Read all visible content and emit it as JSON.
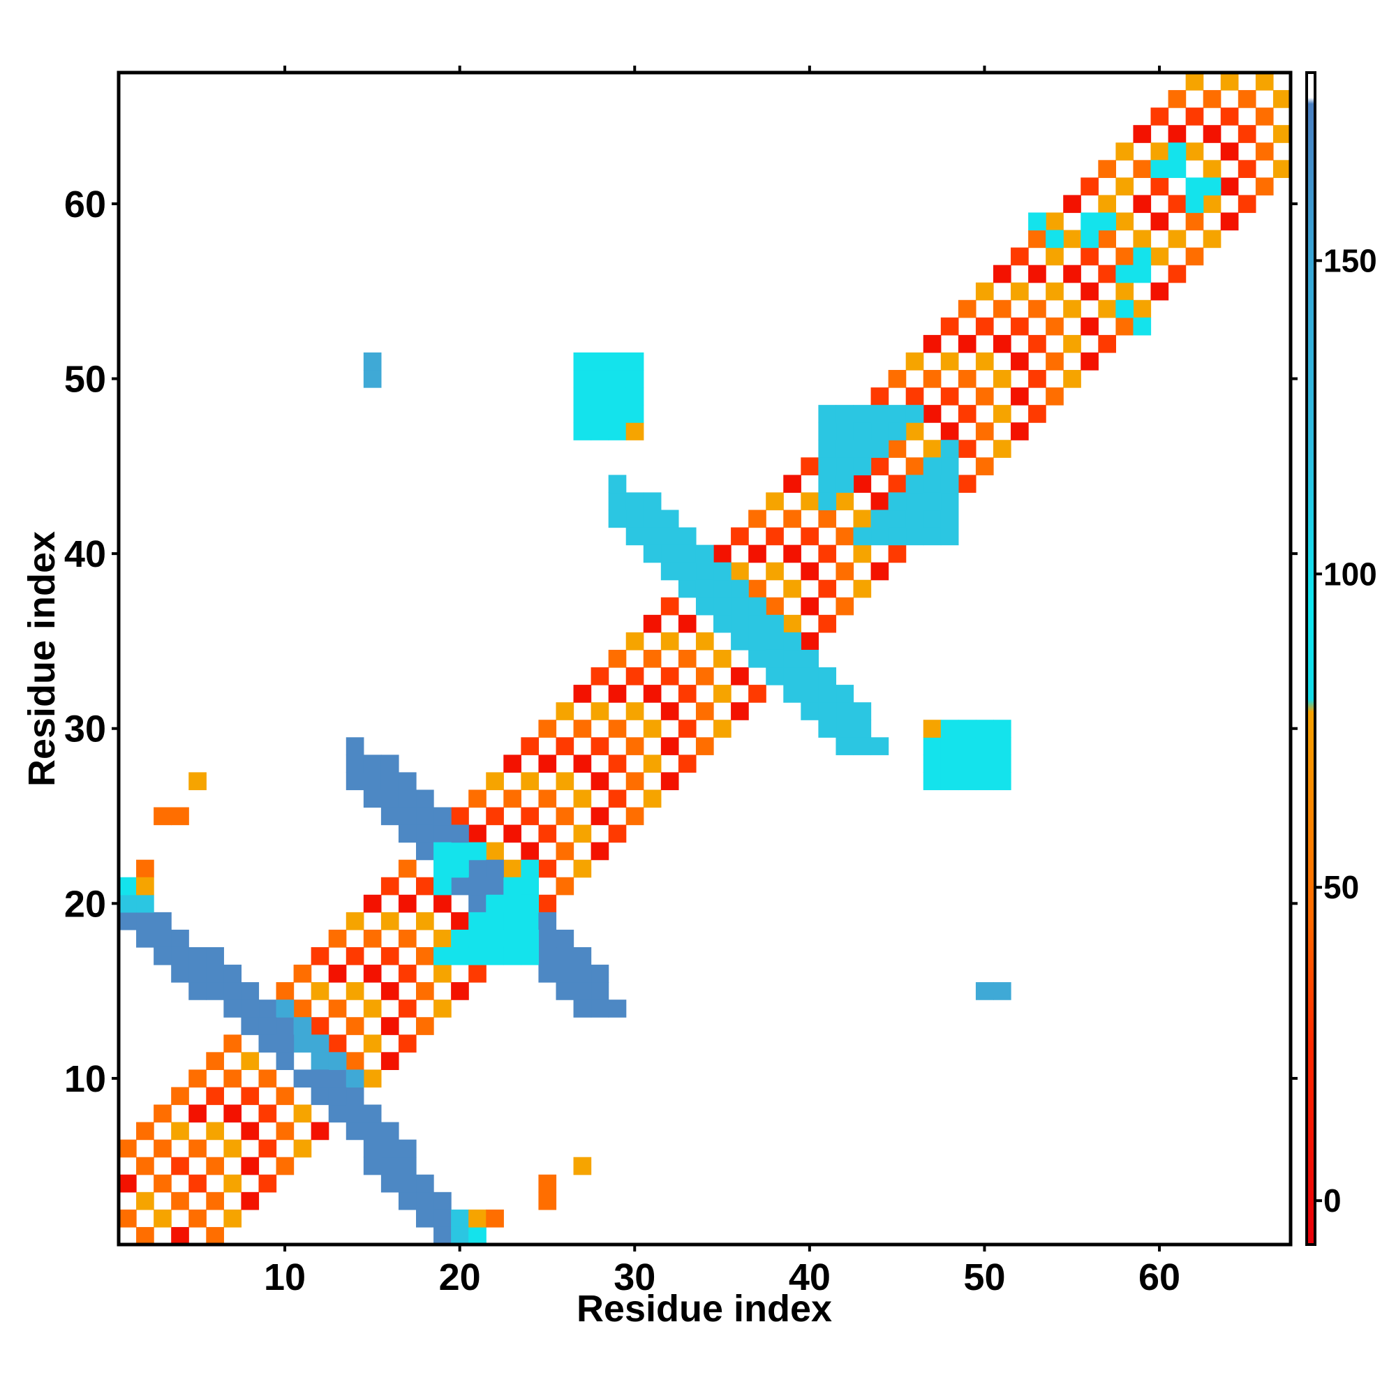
{
  "chart_data": {
    "type": "heatmap",
    "title": "",
    "xlabel": "Residue index",
    "ylabel": "Residue index",
    "xlim": [
      0.5,
      67.5
    ],
    "ylim": [
      0.5,
      67.5
    ],
    "x_ticks": [
      10,
      20,
      30,
      40,
      50,
      60
    ],
    "y_ticks": [
      10,
      20,
      30,
      40,
      50,
      60
    ],
    "colorbar": {
      "ticks": [
        0,
        50,
        100,
        150
      ],
      "range": [
        -7,
        180
      ],
      "stops": [
        {
          "value": -7,
          "color": "#e8000a"
        },
        {
          "value": 25,
          "color": "#ff2a00"
        },
        {
          "value": 45,
          "color": "#ff6a00"
        },
        {
          "value": 78,
          "color": "#f5a000"
        },
        {
          "value": 80,
          "color": "#14dbe8"
        },
        {
          "value": 95,
          "color": "#10e6ef"
        },
        {
          "value": 120,
          "color": "#30bde0"
        },
        {
          "value": 150,
          "color": "#38a6d6"
        },
        {
          "value": 175,
          "color": "#4a7fc1"
        },
        {
          "value": 176,
          "color": "#ffffff"
        },
        {
          "value": 180,
          "color": "#ffffff"
        }
      ]
    },
    "colors": {
      "red": "#f31200",
      "red_orange": "#ff3a00",
      "orange": "#ff6e00",
      "amber": "#f6a400",
      "cyan": "#14e3ec",
      "sky": "#2bc6e2",
      "steel": "#3fa9d6",
      "blue": "#4d88c4"
    },
    "regions": [
      {
        "x": [
          1,
          67
        ],
        "y": [
          1,
          67
        ],
        "band": 6,
        "pattern": "diagonal-alternating",
        "colors": [
          "red",
          "red_orange",
          "orange",
          "amber"
        ]
      },
      {
        "points": [
          [
            2,
            5
          ],
          [
            3,
            4
          ],
          [
            4,
            3
          ],
          [
            5,
            2
          ],
          [
            6,
            1
          ],
          [
            1,
            6
          ],
          [
            2,
            7
          ],
          [
            3,
            8
          ],
          [
            4,
            9
          ],
          [
            5,
            10
          ],
          [
            6,
            11
          ],
          [
            7,
            12
          ],
          [
            8,
            13
          ],
          [
            9,
            14
          ],
          [
            10,
            15
          ],
          [
            11,
            16
          ]
        ],
        "color": "orange"
      },
      {
        "x": [
          1,
          20
        ],
        "y": [
          18,
          20
        ],
        "color": "steel",
        "shape": "anti-diagonal",
        "from": [
          2,
          18
        ],
        "to": [
          10,
          12
        ],
        "width": 3
      },
      {
        "x": [
          11,
          19
        ],
        "y": [
          1,
          10
        ],
        "color": "blue",
        "shape": "anti-diagonal",
        "from": [
          11,
          10
        ],
        "to": [
          19,
          1
        ],
        "width": 3
      },
      {
        "x": [
          13,
          27
        ],
        "y": [
          14,
          28
        ],
        "color": "blue",
        "shape": "anti-diagonal",
        "from": [
          14,
          28
        ],
        "to": [
          27,
          14
        ],
        "width": 3
      },
      {
        "x": [
          19,
          24
        ],
        "y": [
          17,
          23
        ],
        "color": "cyan",
        "shape": "block"
      },
      {
        "x": [
          29,
          43
        ],
        "y": [
          29,
          43
        ],
        "color": "sky",
        "shape": "anti-diagonal",
        "from": [
          29,
          43
        ],
        "to": [
          42,
          29
        ],
        "width": 3
      },
      {
        "x": [
          41,
          48
        ],
        "y": [
          41,
          48
        ],
        "color": "sky",
        "shape": "block"
      },
      {
        "x": [
          27,
          30
        ],
        "y": [
          47,
          51
        ],
        "color": "cyan",
        "shape": "block"
      },
      {
        "x": [
          47,
          51
        ],
        "y": [
          27,
          30
        ],
        "color": "cyan",
        "shape": "block"
      },
      {
        "points": [
          [
            15,
            50
          ],
          [
            15,
            51
          ]
        ],
        "color": "steel"
      },
      {
        "points": [
          [
            50,
            15
          ],
          [
            51,
            15
          ]
        ],
        "color": "steel"
      },
      {
        "points": [
          [
            5,
            27
          ]
        ],
        "color": "amber"
      },
      {
        "points": [
          [
            3,
            25
          ],
          [
            4,
            25
          ]
        ],
        "color": "orange"
      },
      {
        "points": [
          [
            2,
            22
          ]
        ],
        "color": "orange"
      },
      {
        "points": [
          [
            1,
            21
          ]
        ],
        "color": "cyan"
      },
      {
        "points": [
          [
            2,
            21
          ]
        ],
        "color": "amber"
      },
      {
        "points": [
          [
            1,
            20
          ],
          [
            2,
            20
          ]
        ],
        "color": "sky"
      },
      {
        "points": [
          [
            27,
            5
          ]
        ],
        "color": "amber"
      },
      {
        "points": [
          [
            25,
            3
          ],
          [
            25,
            4
          ]
        ],
        "color": "orange"
      },
      {
        "points": [
          [
            21,
            2
          ]
        ],
        "color": "amber"
      },
      {
        "points": [
          [
            22,
            2
          ]
        ],
        "color": "orange"
      },
      {
        "points": [
          [
            21,
            1
          ]
        ],
        "color": "cyan"
      },
      {
        "points": [
          [
            20,
            1
          ],
          [
            20,
            2
          ]
        ],
        "color": "sky"
      },
      {
        "points": [
          [
            30,
            47
          ]
        ],
        "color": "amber"
      },
      {
        "points": [
          [
            47,
            30
          ]
        ],
        "color": "amber"
      },
      {
        "points": [
          [
            57,
            54
          ],
          [
            58,
            55
          ],
          [
            60,
            57
          ],
          [
            61,
            58
          ]
        ],
        "color": "amber"
      },
      {
        "points": [
          [
            54,
            57
          ],
          [
            55,
            58
          ],
          [
            57,
            60
          ],
          [
            58,
            61
          ]
        ],
        "color": "amber"
      },
      {
        "points": [
          [
            55,
            55
          ],
          [
            56,
            56
          ],
          [
            57,
            57
          ],
          [
            58,
            58
          ],
          [
            59,
            59
          ],
          [
            60,
            60
          ],
          [
            61,
            61
          ],
          [
            62,
            62
          ],
          [
            63,
            63
          ],
          [
            64,
            64
          ],
          [
            65,
            65
          ],
          [
            66,
            66
          ],
          [
            67,
            67
          ]
        ],
        "color": "white"
      },
      {
        "points": [
          [
            56,
            59
          ],
          [
            57,
            59
          ],
          [
            56,
            58
          ],
          [
            58,
            54
          ],
          [
            59,
            53
          ],
          [
            60,
            62
          ],
          [
            61,
            63
          ],
          [
            62,
            61
          ]
        ],
        "color": "cyan"
      },
      {
        "points": [
          [
            59,
            56
          ],
          [
            59,
            57
          ],
          [
            58,
            56
          ],
          [
            54,
            58
          ],
          [
            53,
            59
          ],
          [
            62,
            60
          ],
          [
            63,
            61
          ],
          [
            61,
            62
          ]
        ],
        "color": "cyan"
      }
    ]
  }
}
